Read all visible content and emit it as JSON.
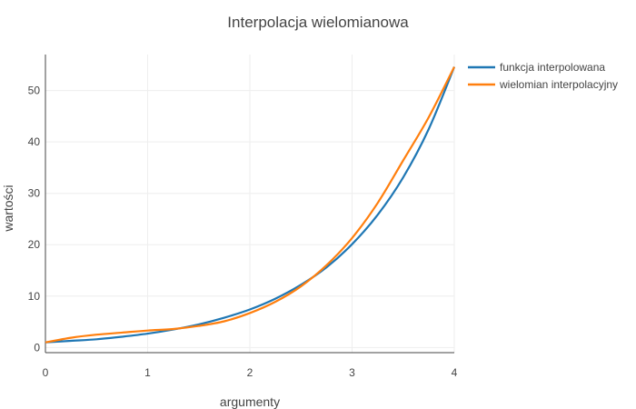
{
  "chart_data": {
    "type": "line",
    "title": "Interpolacja wielomianowa",
    "xlabel": "argumenty",
    "ylabel": "wartości",
    "xlim": [
      0,
      4
    ],
    "ylim": [
      -1,
      57
    ],
    "xticks": [
      0,
      1,
      2,
      3,
      4
    ],
    "yticks": [
      0,
      10,
      20,
      30,
      40,
      50
    ],
    "grid": true,
    "legend": "top-right",
    "series": [
      {
        "name": "funkcja interpolowana",
        "color": "#1f77b4",
        "x": [
          0,
          0.25,
          0.5,
          0.75,
          1.0,
          1.25,
          1.5,
          1.75,
          2.0,
          2.25,
          2.5,
          2.75,
          3.0,
          3.25,
          3.5,
          3.75,
          4.0
        ],
        "y": [
          1.0,
          1.3,
          1.6,
          2.1,
          2.7,
          3.5,
          4.5,
          5.8,
          7.4,
          9.5,
          12.2,
          15.6,
          20.1,
          25.8,
          33.1,
          42.5,
          54.6
        ]
      },
      {
        "name": "wielomian interpolacyjny",
        "color": "#ff7f0e",
        "x": [
          0,
          0.25,
          0.5,
          0.75,
          1.0,
          1.25,
          1.5,
          1.75,
          2.0,
          2.25,
          2.5,
          2.75,
          3.0,
          3.25,
          3.5,
          3.75,
          4.0
        ],
        "y": [
          1.0,
          1.9,
          2.5,
          2.9,
          3.3,
          3.6,
          4.2,
          5.1,
          6.7,
          8.9,
          11.9,
          16.0,
          21.3,
          28.1,
          36.4,
          44.8,
          54.6
        ]
      }
    ]
  }
}
